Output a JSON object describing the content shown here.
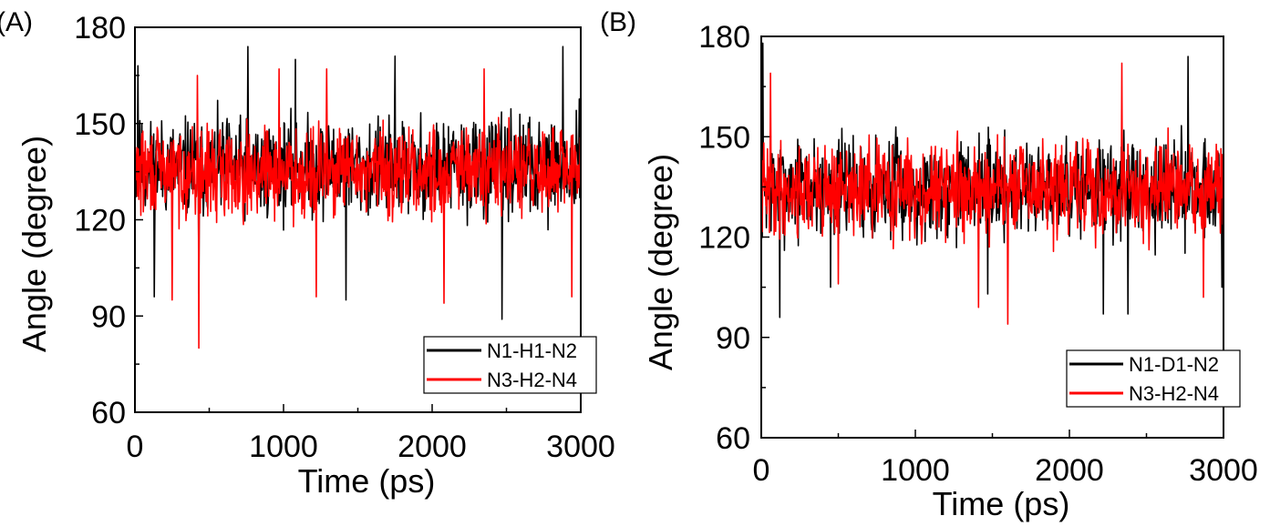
{
  "chart_data": [
    {
      "panel_label": "(A)",
      "type": "line",
      "xlabel": "Time (ps)",
      "ylabel": "Angle (degree)",
      "xlim": [
        0,
        3000
      ],
      "ylim": [
        60,
        180
      ],
      "xticks": [
        0,
        1000,
        2000,
        3000
      ],
      "yticks": [
        60,
        90,
        120,
        150,
        180
      ],
      "legend_position": "bottom-right",
      "series": [
        {
          "name": "N1-H1-N2",
          "color": "#000000",
          "mean": 136,
          "spread": 11,
          "seed": 11,
          "spikes": [
            [
              20,
              168
            ],
            [
              130,
              96
            ],
            [
              430,
              97
            ],
            [
              760,
              174
            ],
            [
              1080,
              170
            ],
            [
              1420,
              95
            ],
            [
              1750,
              171
            ],
            [
              2470,
              89
            ],
            [
              2880,
              174
            ]
          ]
        },
        {
          "name": "N3-H2-N4",
          "color": "#ff0000",
          "mean": 135,
          "spread": 10,
          "seed": 29,
          "spikes": [
            [
              250,
              95
            ],
            [
              420,
              165
            ],
            [
              430,
              80
            ],
            [
              970,
              167
            ],
            [
              1220,
              96
            ],
            [
              1290,
              167
            ],
            [
              2080,
              94
            ],
            [
              2350,
              167
            ],
            [
              2940,
              96
            ]
          ]
        }
      ]
    },
    {
      "panel_label": "(B)",
      "type": "line",
      "xlabel": "Time (ps)",
      "ylabel": "Angle (degree)",
      "xlim": [
        0,
        3000
      ],
      "ylim": [
        60,
        180
      ],
      "xticks": [
        0,
        1000,
        2000,
        3000
      ],
      "yticks": [
        60,
        90,
        120,
        150,
        180
      ],
      "legend_position": "bottom-right",
      "series": [
        {
          "name": "N1-D1-N2",
          "color": "#000000",
          "mean": 135,
          "spread": 11,
          "seed": 7,
          "spikes": [
            [
              10,
              178
            ],
            [
              120,
              96
            ],
            [
              450,
              105
            ],
            [
              1470,
              103
            ],
            [
              2220,
              97
            ],
            [
              2380,
              97
            ],
            [
              2770,
              174
            ],
            [
              2990,
              105
            ]
          ]
        },
        {
          "name": "N3-H2-N4",
          "color": "#ff0000",
          "mean": 134,
          "spread": 10,
          "seed": 41,
          "spikes": [
            [
              60,
              169
            ],
            [
              500,
              106
            ],
            [
              1410,
              99
            ],
            [
              1600,
              94
            ],
            [
              2340,
              172
            ],
            [
              2870,
              102
            ]
          ]
        }
      ]
    }
  ]
}
